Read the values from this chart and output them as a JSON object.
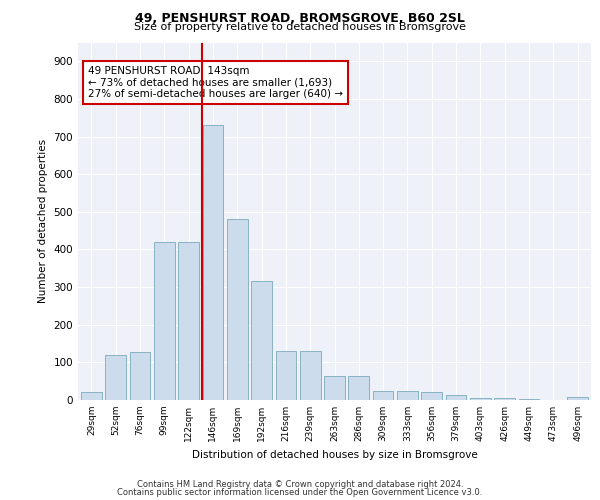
{
  "title1": "49, PENSHURST ROAD, BROMSGROVE, B60 2SL",
  "title2": "Size of property relative to detached houses in Bromsgrove",
  "xlabel": "Distribution of detached houses by size in Bromsgrove",
  "ylabel": "Number of detached properties",
  "bar_heights": [
    22,
    120,
    128,
    420,
    420,
    730,
    480,
    315,
    130,
    130,
    65,
    65,
    25,
    25,
    20,
    12,
    5,
    4,
    2,
    1,
    8
  ],
  "bar_labels": [
    "29sqm",
    "52sqm",
    "76sqm",
    "99sqm",
    "122sqm",
    "146sqm",
    "169sqm",
    "192sqm",
    "216sqm",
    "239sqm",
    "263sqm",
    "286sqm",
    "309sqm",
    "333sqm",
    "356sqm",
    "379sqm",
    "403sqm",
    "426sqm",
    "449sqm",
    "473sqm",
    "496sqm"
  ],
  "bar_color": "#ccdcec",
  "bar_edge_color": "#7aaabb",
  "vline_color": "#cc0000",
  "annotation_text": "49 PENSHURST ROAD: 143sqm\n← 73% of detached houses are smaller (1,693)\n27% of semi-detached houses are larger (640) →",
  "annotation_box_color": "#ffffff",
  "annotation_box_edge": "#cc0000",
  "ylim": [
    0,
    950
  ],
  "yticks": [
    0,
    100,
    200,
    300,
    400,
    500,
    600,
    700,
    800,
    900
  ],
  "footer1": "Contains HM Land Registry data © Crown copyright and database right 2024.",
  "footer2": "Contains public sector information licensed under the Open Government Licence v3.0.",
  "bg_color": "#eef2f8"
}
